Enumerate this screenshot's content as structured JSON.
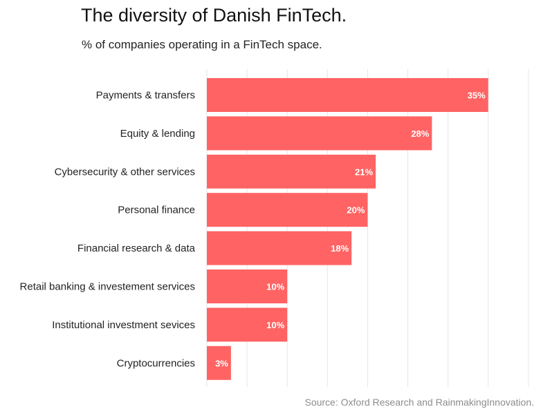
{
  "header": {
    "title": "The diversity of Danish FinTech.",
    "subtitle": "% of companies operating in a FinTech space."
  },
  "footer": {
    "source": "Source: Oxford Research and RainmakingInnovation."
  },
  "colors": {
    "bar": "#ff6363",
    "grid": "#e6e6e6"
  },
  "chart_data": {
    "type": "bar",
    "orientation": "horizontal",
    "title": "The diversity of Danish FinTech.",
    "subtitle": "% of companies operating in a FinTech space.",
    "xlabel": "",
    "ylabel": "",
    "xlim": [
      0,
      40
    ],
    "grid": true,
    "categories": [
      "Payments & transfers",
      "Equity & lending",
      "Cybersecurity & other services",
      "Personal finance",
      "Financial research & data",
      "Retail banking & investement services",
      "Institutional investment sevices",
      "Cryptocurrencies"
    ],
    "values": [
      35,
      28,
      21,
      20,
      18,
      10,
      10,
      3
    ],
    "value_labels": [
      "35%",
      "28%",
      "21%",
      "20%",
      "18%",
      "10%",
      "10%",
      "3%"
    ]
  }
}
